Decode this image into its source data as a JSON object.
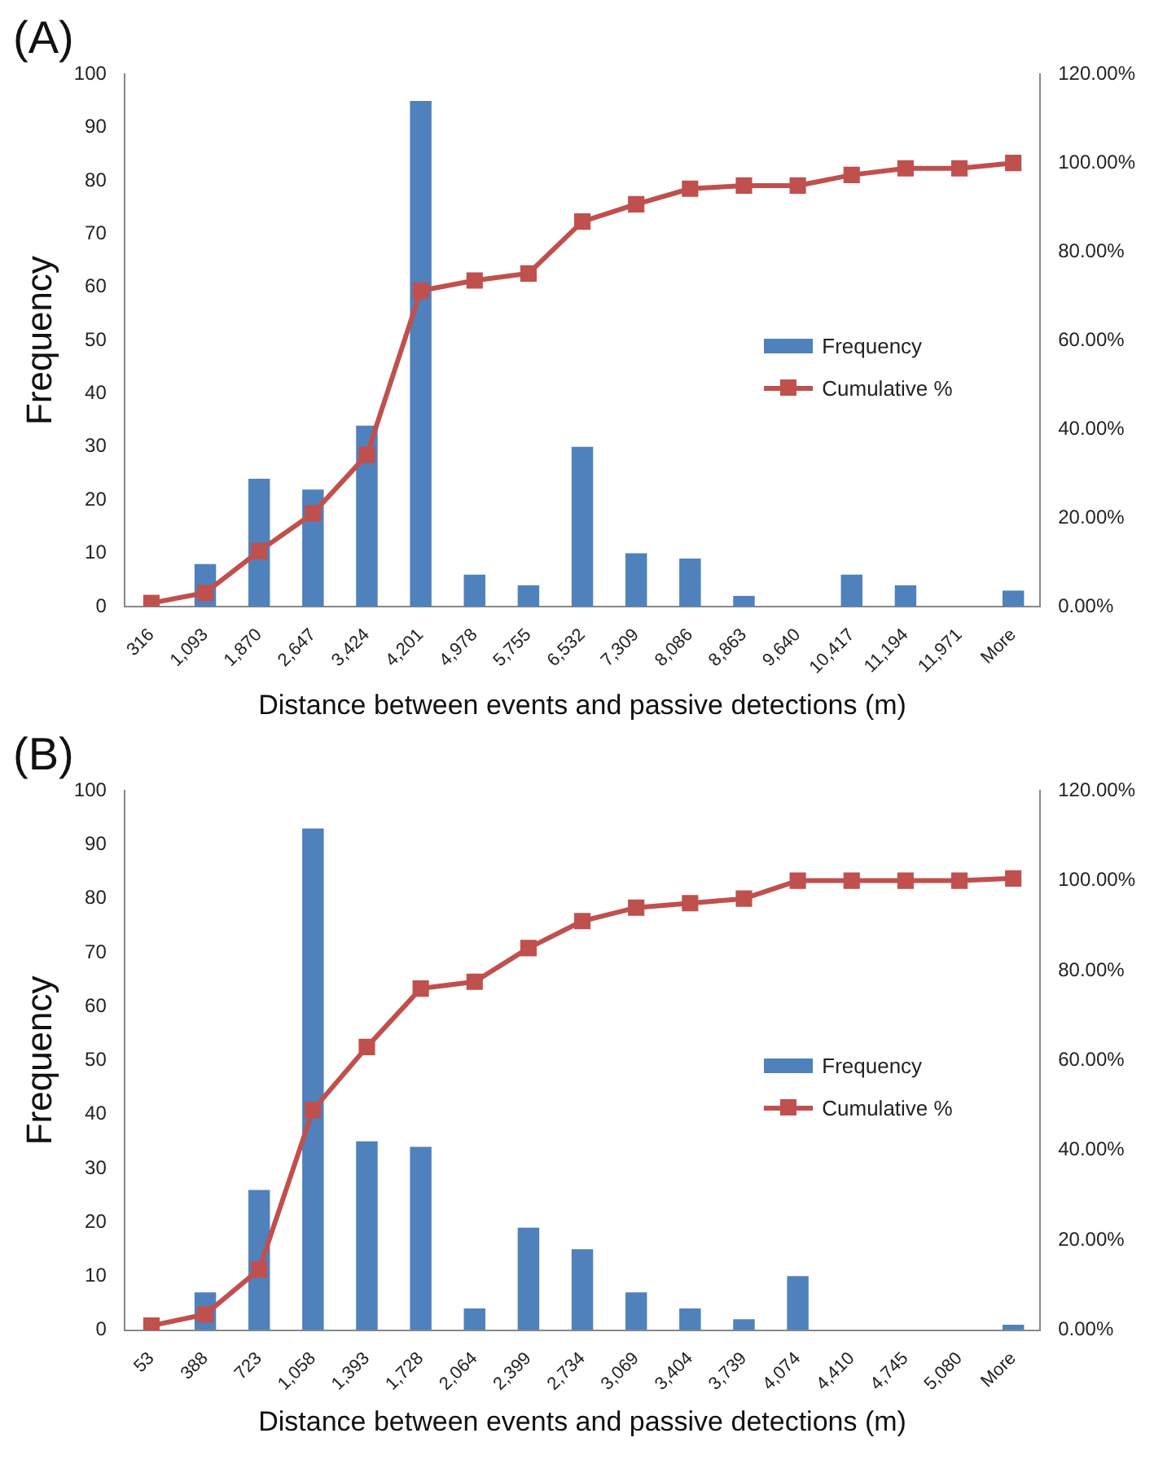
{
  "chart_data": [
    {
      "type": "bar",
      "title": "(A)",
      "xlabel": "Distance between events and passive detections (m)",
      "ylabel": "Frequency",
      "categories": [
        "316",
        "1,093",
        "1,870",
        "2,647",
        "3,424",
        "4,201",
        "4,978",
        "5,755",
        "6,532",
        "7,309",
        "8,086",
        "8,863",
        "9,640",
        "10,417",
        "11,194",
        "11,971",
        "More"
      ],
      "series": [
        {
          "name": "Frequency",
          "color": "#4f81bd",
          "values": [
            0,
            8,
            24,
            22,
            34,
            95,
            6,
            4,
            30,
            10,
            9,
            2,
            0,
            6,
            4,
            0,
            3
          ]
        },
        {
          "name": "Cumulative %",
          "type": "line",
          "axis": "y2",
          "color": "#c0504d",
          "values": [
            0.8,
            3.1,
            12.5,
            21,
            34.2,
            71.2,
            73.5,
            75.1,
            86.8,
            90.7,
            94.2,
            94.9,
            94.9,
            97.3,
            98.8,
            98.8,
            100
          ]
        }
      ],
      "ylim": [
        0,
        100
      ],
      "yticks": [
        0,
        10,
        20,
        30,
        40,
        50,
        60,
        70,
        80,
        90,
        100
      ],
      "y2lim": [
        0,
        120
      ],
      "y2ticks": [
        {
          "value": 0,
          "label": "0.00%"
        },
        {
          "value": 20,
          "label": "20.00%"
        },
        {
          "value": 40,
          "label": "40.00%"
        },
        {
          "value": 60,
          "label": "60.00%"
        },
        {
          "value": 80,
          "label": "80.00%"
        },
        {
          "value": 100,
          "label": "100.00%"
        },
        {
          "value": 120,
          "label": "120.00%"
        }
      ],
      "marker": "square",
      "legend": "right",
      "grid": false
    },
    {
      "type": "bar",
      "title": "(B)",
      "xlabel": "Distance between events and passive detections (m)",
      "ylabel": "Frequency",
      "categories": [
        "53",
        "388",
        "723",
        "1,058",
        "1,393",
        "1,728",
        "2,064",
        "2,399",
        "2,734",
        "3,069",
        "3,404",
        "3,739",
        "4,074",
        "4,410",
        "4,745",
        "5,080",
        "More"
      ],
      "series": [
        {
          "name": "Frequency",
          "color": "#4f81bd",
          "values": [
            0,
            7,
            26,
            93,
            35,
            34,
            4,
            19,
            15,
            7,
            4,
            2,
            10,
            0,
            0,
            0,
            1
          ]
        },
        {
          "name": "Cumulative %",
          "type": "line",
          "axis": "y2",
          "color": "#c0504d",
          "values": [
            1,
            3.5,
            13.5,
            49,
            63,
            76,
            77.5,
            85,
            91,
            94,
            95,
            96,
            100,
            100,
            100,
            100,
            100.5
          ]
        }
      ],
      "ylim": [
        0,
        100
      ],
      "yticks": [
        0,
        10,
        20,
        30,
        40,
        50,
        60,
        70,
        80,
        90,
        100
      ],
      "y2lim": [
        0,
        120
      ],
      "y2ticks": [
        {
          "value": 0,
          "label": "0.00%"
        },
        {
          "value": 20,
          "label": "20.00%"
        },
        {
          "value": 40,
          "label": "40.00%"
        },
        {
          "value": 60,
          "label": "60.00%"
        },
        {
          "value": 80,
          "label": "80.00%"
        },
        {
          "value": 100,
          "label": "100.00%"
        },
        {
          "value": 120,
          "label": "120.00%"
        }
      ],
      "marker": "square",
      "legend": "right",
      "grid": false
    }
  ]
}
